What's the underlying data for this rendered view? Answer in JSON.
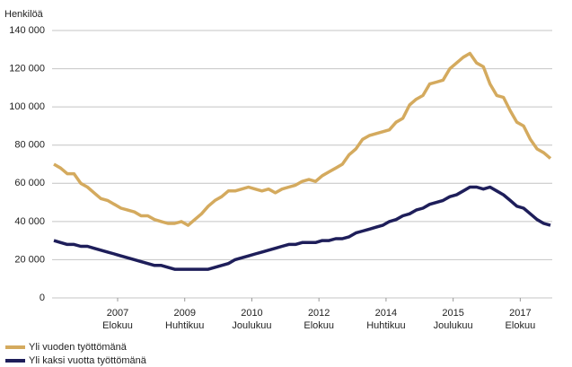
{
  "chart_data": {
    "type": "line",
    "y_label": "Henkilöä",
    "x": [
      "2006-01",
      "2006-03",
      "2006-05",
      "2006-07",
      "2006-09",
      "2006-11",
      "2007-01",
      "2007-03",
      "2007-05",
      "2007-07",
      "2007-09",
      "2007-11",
      "2008-01",
      "2008-03",
      "2008-05",
      "2008-07",
      "2008-09",
      "2008-11",
      "2009-01",
      "2009-03",
      "2009-05",
      "2009-07",
      "2009-09",
      "2009-11",
      "2010-01",
      "2010-03",
      "2010-05",
      "2010-07",
      "2010-09",
      "2010-11",
      "2011-01",
      "2011-03",
      "2011-05",
      "2011-07",
      "2011-09",
      "2011-11",
      "2012-01",
      "2012-03",
      "2012-05",
      "2012-07",
      "2012-09",
      "2012-11",
      "2013-01",
      "2013-03",
      "2013-05",
      "2013-07",
      "2013-09",
      "2013-11",
      "2014-01",
      "2014-03",
      "2014-05",
      "2014-07",
      "2014-09",
      "2014-11",
      "2015-01",
      "2015-03",
      "2015-05",
      "2015-07",
      "2015-09",
      "2015-11",
      "2016-01",
      "2016-03",
      "2016-05",
      "2016-07",
      "2016-09",
      "2016-11",
      "2017-01",
      "2017-03",
      "2017-05",
      "2017-07",
      "2017-09",
      "2017-11",
      "2018-01",
      "2018-03",
      "2018-05"
    ],
    "series": [
      {
        "name": "Yli vuoden työttömänä",
        "color": "#d4aa5e",
        "values": [
          70000,
          68000,
          65000,
          65000,
          60000,
          58000,
          55000,
          52000,
          51000,
          49000,
          47000,
          46000,
          45000,
          43000,
          43000,
          41000,
          40000,
          39000,
          39000,
          40000,
          38000,
          41000,
          44000,
          48000,
          51000,
          53000,
          56000,
          56000,
          57000,
          58000,
          57000,
          56000,
          57000,
          55000,
          57000,
          58000,
          59000,
          61000,
          62000,
          61000,
          64000,
          66000,
          68000,
          70000,
          75000,
          78000,
          83000,
          85000,
          86000,
          87000,
          88000,
          92000,
          94000,
          101000,
          104000,
          106000,
          112000,
          113000,
          114000,
          120000,
          123000,
          126000,
          128000,
          123000,
          121000,
          112000,
          106000,
          105000,
          98000,
          92000,
          90000,
          83000,
          78000,
          76000,
          73000
        ]
      },
      {
        "name": "Yli kaksi vuotta työttömänä",
        "color": "#1e1e5a",
        "values": [
          30000,
          29000,
          28000,
          28000,
          27000,
          27000,
          26000,
          25000,
          24000,
          23000,
          22000,
          21000,
          20000,
          19000,
          18000,
          17000,
          17000,
          16000,
          15000,
          15000,
          15000,
          15000,
          15000,
          15000,
          16000,
          17000,
          18000,
          20000,
          21000,
          22000,
          23000,
          24000,
          25000,
          26000,
          27000,
          28000,
          28000,
          29000,
          29000,
          29000,
          30000,
          30000,
          31000,
          31000,
          32000,
          34000,
          35000,
          36000,
          37000,
          38000,
          40000,
          41000,
          43000,
          44000,
          46000,
          47000,
          49000,
          50000,
          51000,
          53000,
          54000,
          56000,
          58000,
          58000,
          57000,
          58000,
          56000,
          54000,
          51000,
          48000,
          47000,
          44000,
          41000,
          39000,
          38000
        ]
      }
    ],
    "xlim": [
      "2006-01",
      "2018-05"
    ],
    "xticks": [
      {
        "value": "2007-08",
        "label": [
          "2007",
          "Elokuu"
        ]
      },
      {
        "value": "2009-04",
        "label": [
          "2009",
          "Huhtikuu"
        ]
      },
      {
        "value": "2010-12",
        "label": [
          "2010",
          "Joulukuu"
        ]
      },
      {
        "value": "2012-08",
        "label": [
          "2012",
          "Elokuu"
        ]
      },
      {
        "value": "2014-04",
        "label": [
          "2014",
          "Huhtikuu"
        ]
      },
      {
        "value": "2015-12",
        "label": [
          "2015",
          "Joulukuu"
        ]
      },
      {
        "value": "2017-08",
        "label": [
          "2017",
          "Elokuu"
        ]
      }
    ],
    "ylim": [
      0,
      140000
    ],
    "yticks": [
      0,
      {
        "value": 20000,
        "label": "20 000"
      },
      {
        "value": 40000,
        "label": "40 000"
      },
      {
        "value": 60000,
        "label": "60 000"
      },
      {
        "value": 80000,
        "label": "80 000"
      },
      {
        "value": 100000,
        "label": "100 000"
      },
      {
        "value": 120000,
        "label": "120 000"
      },
      {
        "value": 140000,
        "label": "140 000"
      }
    ],
    "grid": true,
    "legend": "bottom-left"
  }
}
